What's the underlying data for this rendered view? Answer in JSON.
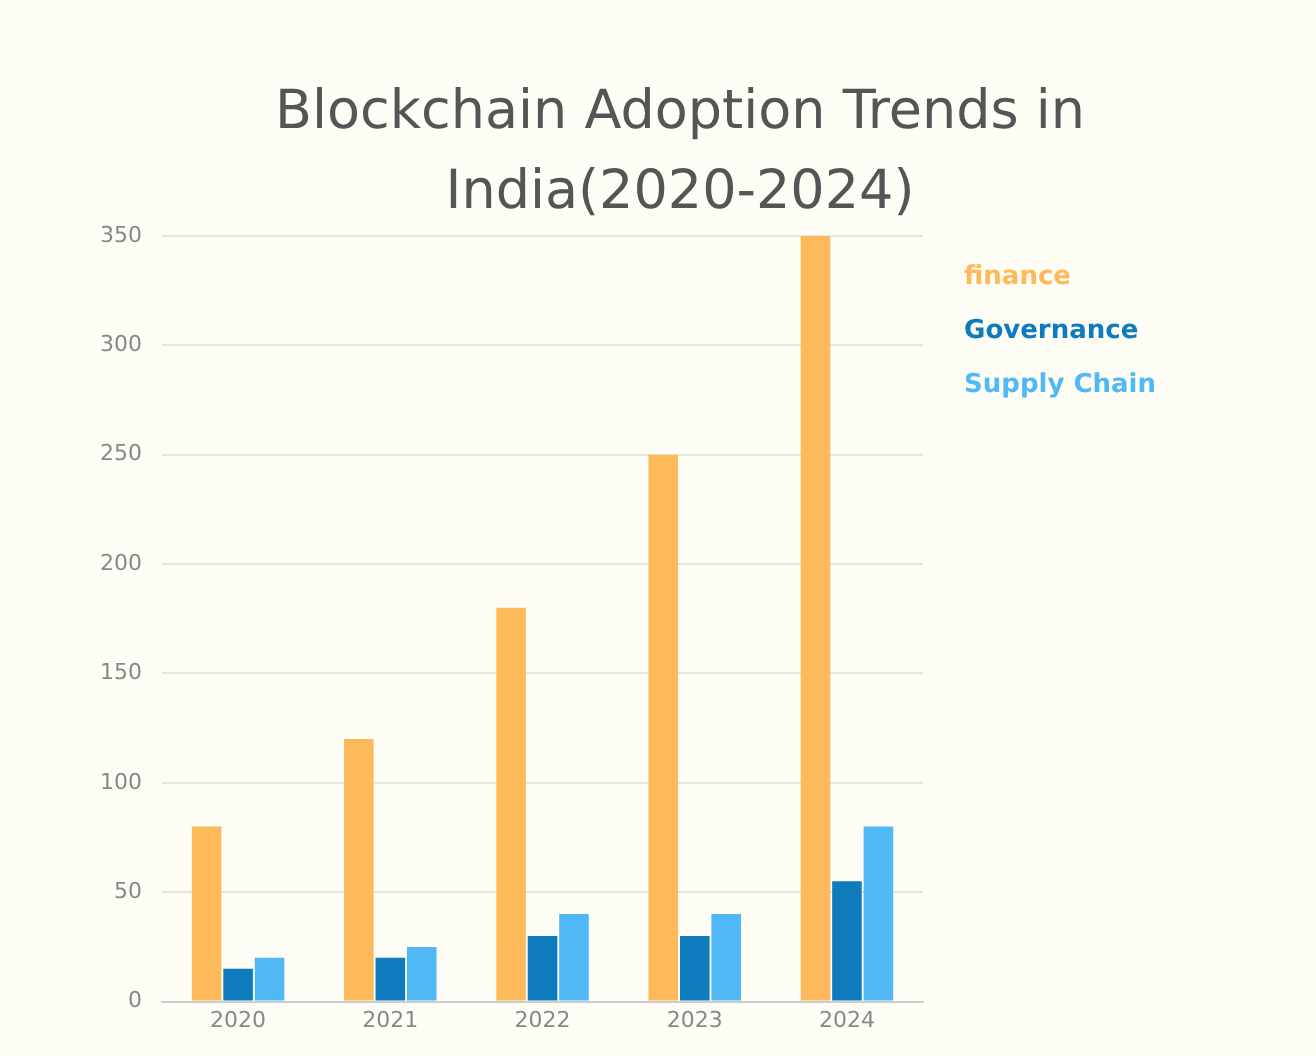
{
  "chart_data": {
    "type": "bar",
    "title": "Blockchain Adoption Trends in India(2020-2024)",
    "categories": [
      "2020",
      "2021",
      "2022",
      "2023",
      "2024"
    ],
    "series": [
      {
        "name": "finance",
        "color": "#fdb95a",
        "values": [
          80,
          120,
          180,
          250,
          350
        ]
      },
      {
        "name": "Governance",
        "color": "#0e7bbd",
        "values": [
          15,
          20,
          30,
          30,
          55
        ]
      },
      {
        "name": "Supply Chain",
        "color": "#4fb8f5",
        "values": [
          20,
          25,
          40,
          40,
          80
        ]
      }
    ],
    "ylim": [
      0,
      350
    ],
    "yticks": [
      0,
      50,
      100,
      150,
      200,
      250,
      300,
      350
    ],
    "grid": "y",
    "legend": "top right"
  }
}
